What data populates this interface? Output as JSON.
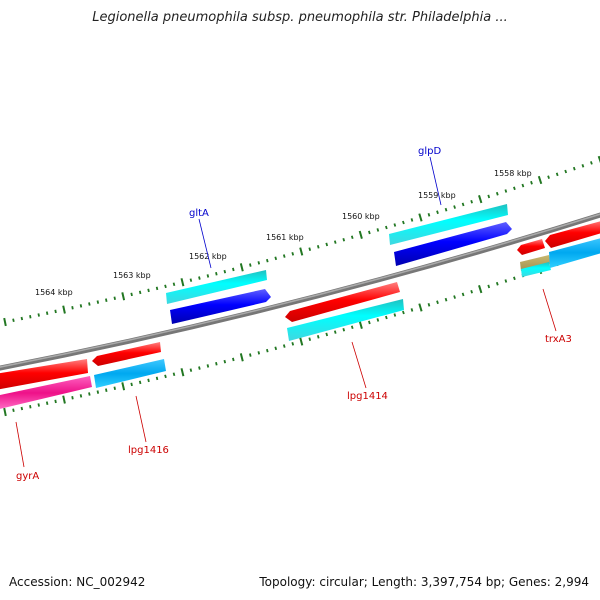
{
  "title": "Legionella pneumophila subsp. pneumophila str. Philadelphia ...",
  "footer": {
    "accession": "Accession: NC_002942",
    "summary": "Topology: circular; Length: 3,397,754 bp; Genes: 2,994"
  },
  "ruler": {
    "labels": [
      "1564 kbp",
      "1563 kbp",
      "1562 kbp",
      "1561 kbp",
      "1560 kbp",
      "1559 kbp",
      "1558 kbp"
    ]
  },
  "genes": [
    {
      "name": "gyrA",
      "color": "#cc0000"
    },
    {
      "name": "lpg1416",
      "color": "#cc0000"
    },
    {
      "name": "gltA",
      "color": "#0000cc"
    },
    {
      "name": "lpg1414",
      "color": "#cc0000"
    },
    {
      "name": "glpD",
      "color": "#0000cc"
    },
    {
      "name": "trxA3",
      "color": "#cc0000"
    }
  ],
  "colors": {
    "forward_cds": "#ff0000",
    "reverse_cds": "#0000ff",
    "cyan_feature": "#00e0e8",
    "sky_feature": "#00aaee",
    "magenta_feature": "#ee1188",
    "tan_feature": "#b0a060",
    "backbone": "#888888",
    "ticks": "#227722"
  }
}
